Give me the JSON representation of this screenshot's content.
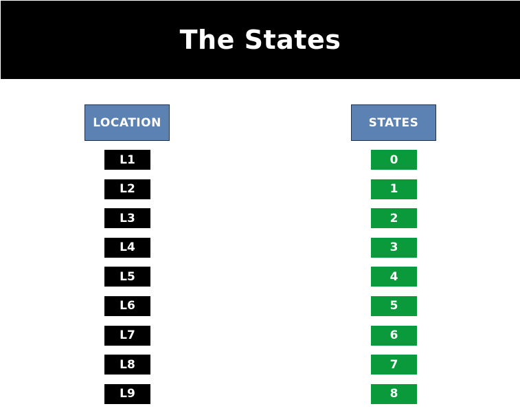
{
  "title": "The States",
  "headers": {
    "location": "LOCATION",
    "states": "STATES"
  },
  "rows": [
    {
      "location": "L1",
      "state": "0"
    },
    {
      "location": "L2",
      "state": "1"
    },
    {
      "location": "L3",
      "state": "2"
    },
    {
      "location": "L4",
      "state": "3"
    },
    {
      "location": "L5",
      "state": "4"
    },
    {
      "location": "L6",
      "state": "5"
    },
    {
      "location": "L7",
      "state": "6"
    },
    {
      "location": "L8",
      "state": "7"
    },
    {
      "location": "L9",
      "state": "8"
    }
  ],
  "colors": {
    "title_bg": "#000000",
    "header_bg": "#5b82b3",
    "location_bg": "#000000",
    "state_bg": "#0a9a3c",
    "text": "#ffffff"
  }
}
